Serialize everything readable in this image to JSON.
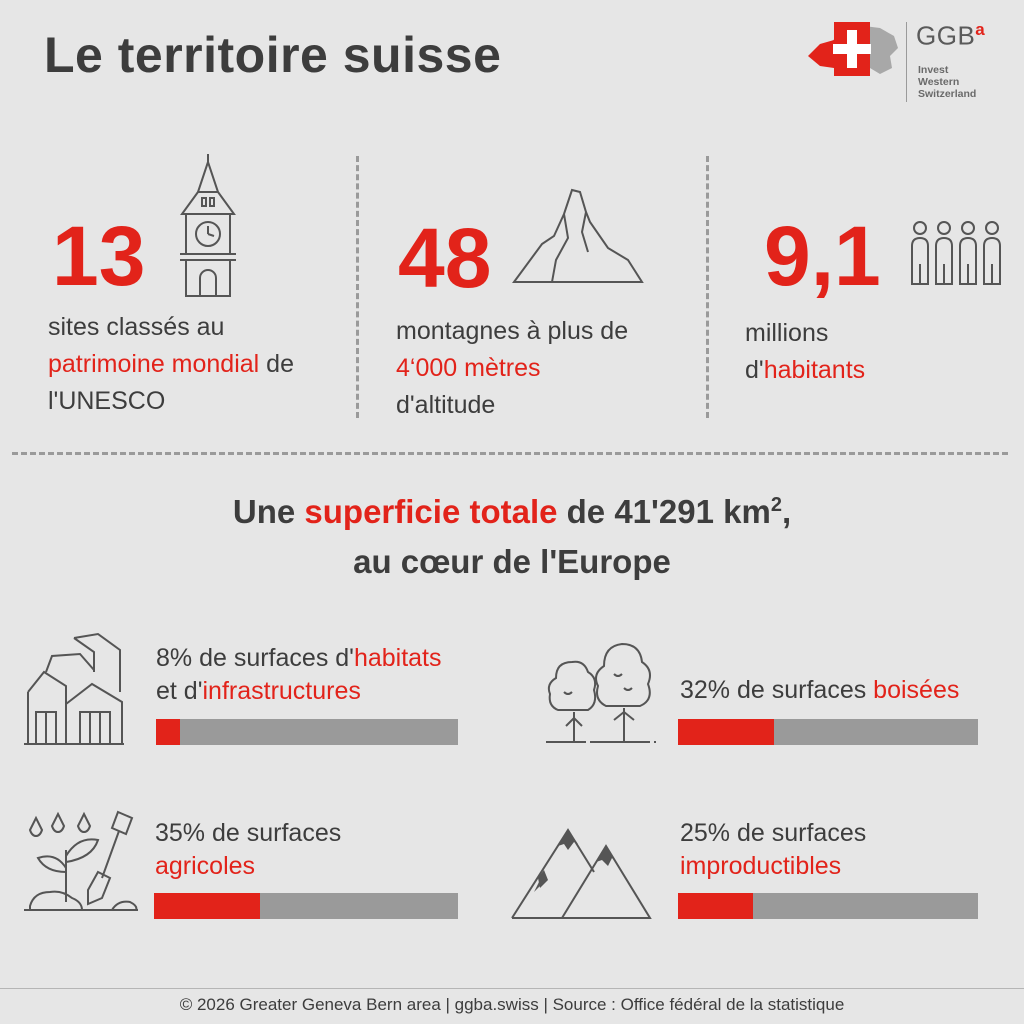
{
  "title": "Le territoire suisse",
  "logo": {
    "brand": "GGB",
    "sup": "a",
    "lines": [
      "Invest",
      "Western",
      "Switzerland"
    ],
    "flag_color": "#e2231a"
  },
  "stats": [
    {
      "number": "13",
      "line1": "sites classés au",
      "highlight": "patrimoine mondial",
      "after": " de",
      "line3": "l'UNESCO"
    },
    {
      "number": "48",
      "line1": "montagnes à plus de",
      "highlight": "4‘000 mètres",
      "line3": "d'altitude"
    },
    {
      "number": "9,1",
      "line1": "millions",
      "pre": "d'",
      "highlight": "habitants"
    }
  ],
  "headline": {
    "pre": "Une ",
    "highlight": "superficie totale",
    "post": " de 41'291 km",
    "sup": "2",
    "end": ",",
    "line2": "au cœur de l'Europe"
  },
  "categories": [
    {
      "pre": "8% de surfaces d'",
      "highlight": "habitats",
      "line2_pre": "et d'",
      "line2_highlight": "infrastructures",
      "percent": 8
    },
    {
      "pre": "32% de surfaces ",
      "highlight": "boisées",
      "percent": 32
    },
    {
      "pre": "35% de surfaces",
      "highlight": "agricoles",
      "percent": 35
    },
    {
      "pre": "25% de surfaces",
      "highlight": "improductibles",
      "percent": 25
    }
  ],
  "footer": "© 2026 Greater Geneva Bern area | ggba.swiss | Source : Office fédéral de la statistique",
  "colors": {
    "accent": "#e2231a",
    "text": "#3d3d3d",
    "background": "#e6e6e6",
    "bar": "#9a9a9a"
  }
}
